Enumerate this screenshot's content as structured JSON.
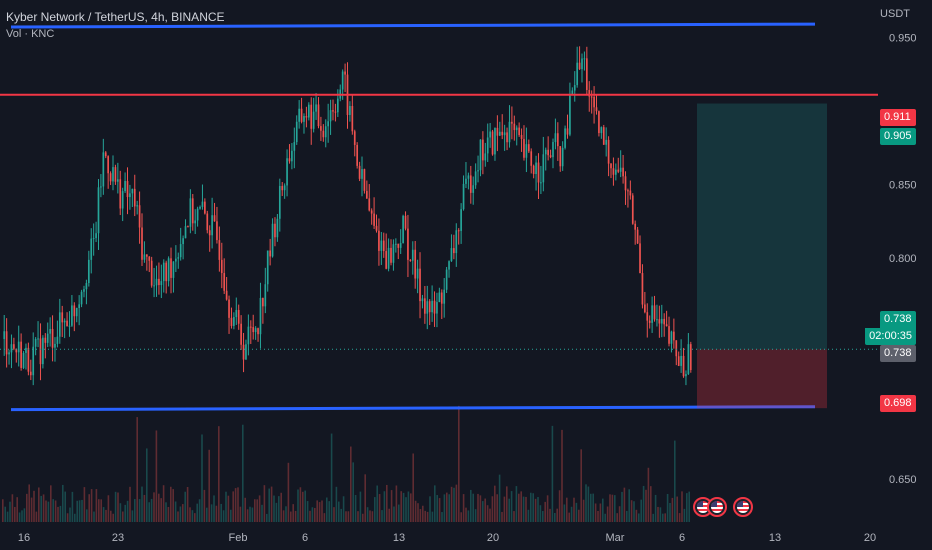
{
  "header": {
    "title": "Kyber Network / TetherUS, 4h, BINANCE",
    "volume_label": "Vol · KNC"
  },
  "axis": {
    "unit": "USDT",
    "y_ticks": [
      "0.950",
      "0.850",
      "0.800",
      "0.650"
    ],
    "x_ticks": [
      "16",
      "23",
      "Feb",
      "6",
      "13",
      "20",
      "Mar",
      "6",
      "13",
      "20"
    ]
  },
  "price_tags": {
    "resistance": "0.911",
    "target": "0.905",
    "last_price": "0.738",
    "countdown": "02:00:35",
    "crosshair": "0.738",
    "stop": "0.698"
  },
  "colors": {
    "background": "#131722",
    "up": "#26a69a",
    "down": "#ef5350",
    "channel": "#2962ff",
    "resistance": "#f23645",
    "target_zone": "#26a69a",
    "stop_zone": "#f23645"
  },
  "chart_data": {
    "type": "candlestick",
    "symbol": "KNC/USDT",
    "interval": "4h",
    "exchange": "BINANCE",
    "ylim": [
      0.622,
      0.974
    ],
    "x_tick_labels": [
      "16",
      "23",
      "Feb",
      "6",
      "13",
      "20",
      "Mar",
      "6",
      "13",
      "20"
    ],
    "price_path": [
      [
        0.0,
        0.745
      ],
      [
        0.025,
        0.73
      ],
      [
        0.045,
        0.745
      ],
      [
        0.07,
        0.765
      ],
      [
        0.09,
        0.81
      ],
      [
        0.1,
        0.872
      ],
      [
        0.115,
        0.845
      ],
      [
        0.13,
        0.84
      ],
      [
        0.14,
        0.8
      ],
      [
        0.155,
        0.78
      ],
      [
        0.17,
        0.8
      ],
      [
        0.185,
        0.83
      ],
      [
        0.2,
        0.83
      ],
      [
        0.215,
        0.81
      ],
      [
        0.225,
        0.77
      ],
      [
        0.24,
        0.74
      ],
      [
        0.255,
        0.76
      ],
      [
        0.27,
        0.82
      ],
      [
        0.285,
        0.87
      ],
      [
        0.3,
        0.9
      ],
      [
        0.32,
        0.89
      ],
      [
        0.34,
        0.92
      ],
      [
        0.355,
        0.86
      ],
      [
        0.37,
        0.82
      ],
      [
        0.385,
        0.8
      ],
      [
        0.4,
        0.82
      ],
      [
        0.415,
        0.78
      ],
      [
        0.43,
        0.76
      ],
      [
        0.445,
        0.79
      ],
      [
        0.46,
        0.84
      ],
      [
        0.475,
        0.87
      ],
      [
        0.49,
        0.88
      ],
      [
        0.505,
        0.89
      ],
      [
        0.52,
        0.87
      ],
      [
        0.535,
        0.86
      ],
      [
        0.55,
        0.875
      ],
      [
        0.56,
        0.87
      ],
      [
        0.57,
        0.92
      ],
      [
        0.58,
        0.935
      ],
      [
        0.59,
        0.895
      ],
      [
        0.605,
        0.87
      ],
      [
        0.62,
        0.855
      ],
      [
        0.632,
        0.82
      ],
      [
        0.64,
        0.77
      ],
      [
        0.65,
        0.76
      ],
      [
        0.665,
        0.745
      ],
      [
        0.68,
        0.725
      ],
      [
        0.69,
        0.738
      ]
    ],
    "channel_upper": [
      0.957,
      0.959
    ],
    "channel_lower": [
      0.697,
      0.699
    ],
    "resistance_level": 0.911,
    "position": {
      "entry": 0.738,
      "target": 0.905,
      "stop": 0.698
    },
    "last_price": 0.738,
    "volume": "shown"
  }
}
